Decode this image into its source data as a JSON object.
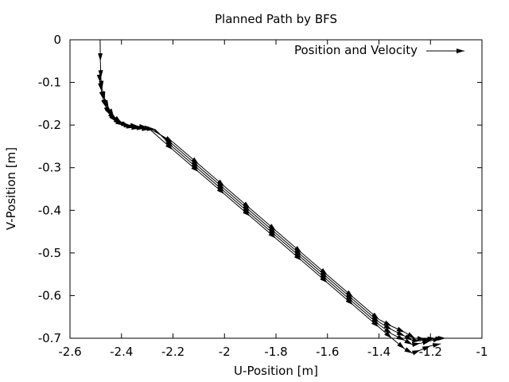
{
  "chart_data": {
    "type": "line",
    "title": "Planned Path by BFS",
    "xlabel": "U-Position [m]",
    "ylabel": "V-Position [m]",
    "xlim": [
      -2.6,
      -1.0
    ],
    "ylim": [
      -0.7,
      0.0
    ],
    "x_ticks": [
      -2.6,
      -2.4,
      -2.2,
      -2.0,
      -1.8,
      -1.6,
      -1.4,
      -1.2,
      -1.0
    ],
    "x_tick_labels": [
      "-2.6",
      "-2.4",
      "-2.2",
      "-2",
      "-1.8",
      "-1.6",
      "-1.4",
      "-1.2",
      "-1"
    ],
    "y_ticks": [
      0.0,
      -0.1,
      -0.2,
      -0.3,
      -0.4,
      -0.5,
      -0.6,
      -0.7
    ],
    "y_tick_labels": [
      "0",
      "-0.1",
      "-0.2",
      "-0.3",
      "-0.4",
      "-0.5",
      "-0.6",
      "-0.7"
    ],
    "grid": false,
    "legend": {
      "position": "top-right",
      "entries": [
        "Position and Velocity"
      ]
    },
    "series": [
      {
        "name": "Position and Velocity",
        "style": "arrows",
        "color": "#000000",
        "x": [
          -2.483,
          -2.482,
          -2.48,
          -2.475,
          -2.465,
          -2.45,
          -2.43,
          -2.4,
          -2.37,
          -2.33,
          -2.29,
          -2.2,
          -2.1,
          -2.0,
          -1.9,
          -1.8,
          -1.7,
          -1.6,
          -1.5,
          -1.4,
          -1.35,
          -1.3,
          -1.27,
          -1.24,
          -1.2,
          -1.16
        ],
        "y": [
          0.0,
          -0.05,
          -0.09,
          -0.115,
          -0.14,
          -0.16,
          -0.18,
          -0.195,
          -0.205,
          -0.208,
          -0.21,
          -0.258,
          -0.31,
          -0.362,
          -0.414,
          -0.466,
          -0.518,
          -0.57,
          -0.622,
          -0.674,
          -0.7,
          -0.725,
          -0.735,
          -0.728,
          -0.718,
          -0.713
        ]
      },
      {
        "name": "",
        "style": "arrows",
        "color": "#000000",
        "x": [
          -2.485,
          -2.483,
          -2.478,
          -2.47,
          -2.458,
          -2.44,
          -2.415,
          -2.385,
          -2.35,
          -2.31,
          -2.27,
          -2.2,
          -2.1,
          -2.0,
          -1.9,
          -1.8,
          -1.7,
          -1.6,
          -1.5,
          -1.4,
          -1.35,
          -1.3,
          -1.27,
          -1.24,
          -1.2,
          -1.16
        ],
        "y": [
          -0.09,
          -0.1,
          -0.12,
          -0.14,
          -0.16,
          -0.178,
          -0.192,
          -0.202,
          -0.206,
          -0.208,
          -0.21,
          -0.252,
          -0.304,
          -0.356,
          -0.408,
          -0.46,
          -0.512,
          -0.564,
          -0.616,
          -0.668,
          -0.69,
          -0.705,
          -0.715,
          -0.712,
          -0.706,
          -0.7
        ]
      },
      {
        "name": "",
        "style": "arrows",
        "color": "#000000",
        "x": [
          -2.478,
          -2.47,
          -2.458,
          -2.442,
          -2.42,
          -2.392,
          -2.36,
          -2.32,
          -2.28,
          -2.2,
          -2.1,
          -2.0,
          -1.9,
          -1.8,
          -1.7,
          -1.6,
          -1.5,
          -1.4,
          -1.35,
          -1.3,
          -1.27,
          -1.24,
          -1.2,
          -1.15
        ],
        "y": [
          -0.12,
          -0.14,
          -0.16,
          -0.178,
          -0.192,
          -0.2,
          -0.204,
          -0.206,
          -0.208,
          -0.246,
          -0.298,
          -0.35,
          -0.402,
          -0.454,
          -0.506,
          -0.558,
          -0.61,
          -0.662,
          -0.68,
          -0.695,
          -0.705,
          -0.706,
          -0.702,
          -0.7
        ]
      },
      {
        "name": "",
        "style": "arrows",
        "color": "#000000",
        "x": [
          -2.47,
          -2.46,
          -2.445,
          -2.425,
          -2.4,
          -2.37,
          -2.335,
          -2.3,
          -2.2,
          -2.1,
          -2.0,
          -1.9,
          -1.8,
          -1.7,
          -1.6,
          -1.5,
          -1.4,
          -1.35,
          -1.3,
          -1.26,
          -1.22,
          -1.18,
          -1.14
        ],
        "y": [
          -0.14,
          -0.158,
          -0.174,
          -0.188,
          -0.197,
          -0.2,
          -0.203,
          -0.205,
          -0.24,
          -0.292,
          -0.344,
          -0.396,
          -0.448,
          -0.5,
          -0.552,
          -0.604,
          -0.656,
          -0.672,
          -0.686,
          -0.7,
          -0.702,
          -0.7,
          -0.7
        ]
      }
    ]
  }
}
